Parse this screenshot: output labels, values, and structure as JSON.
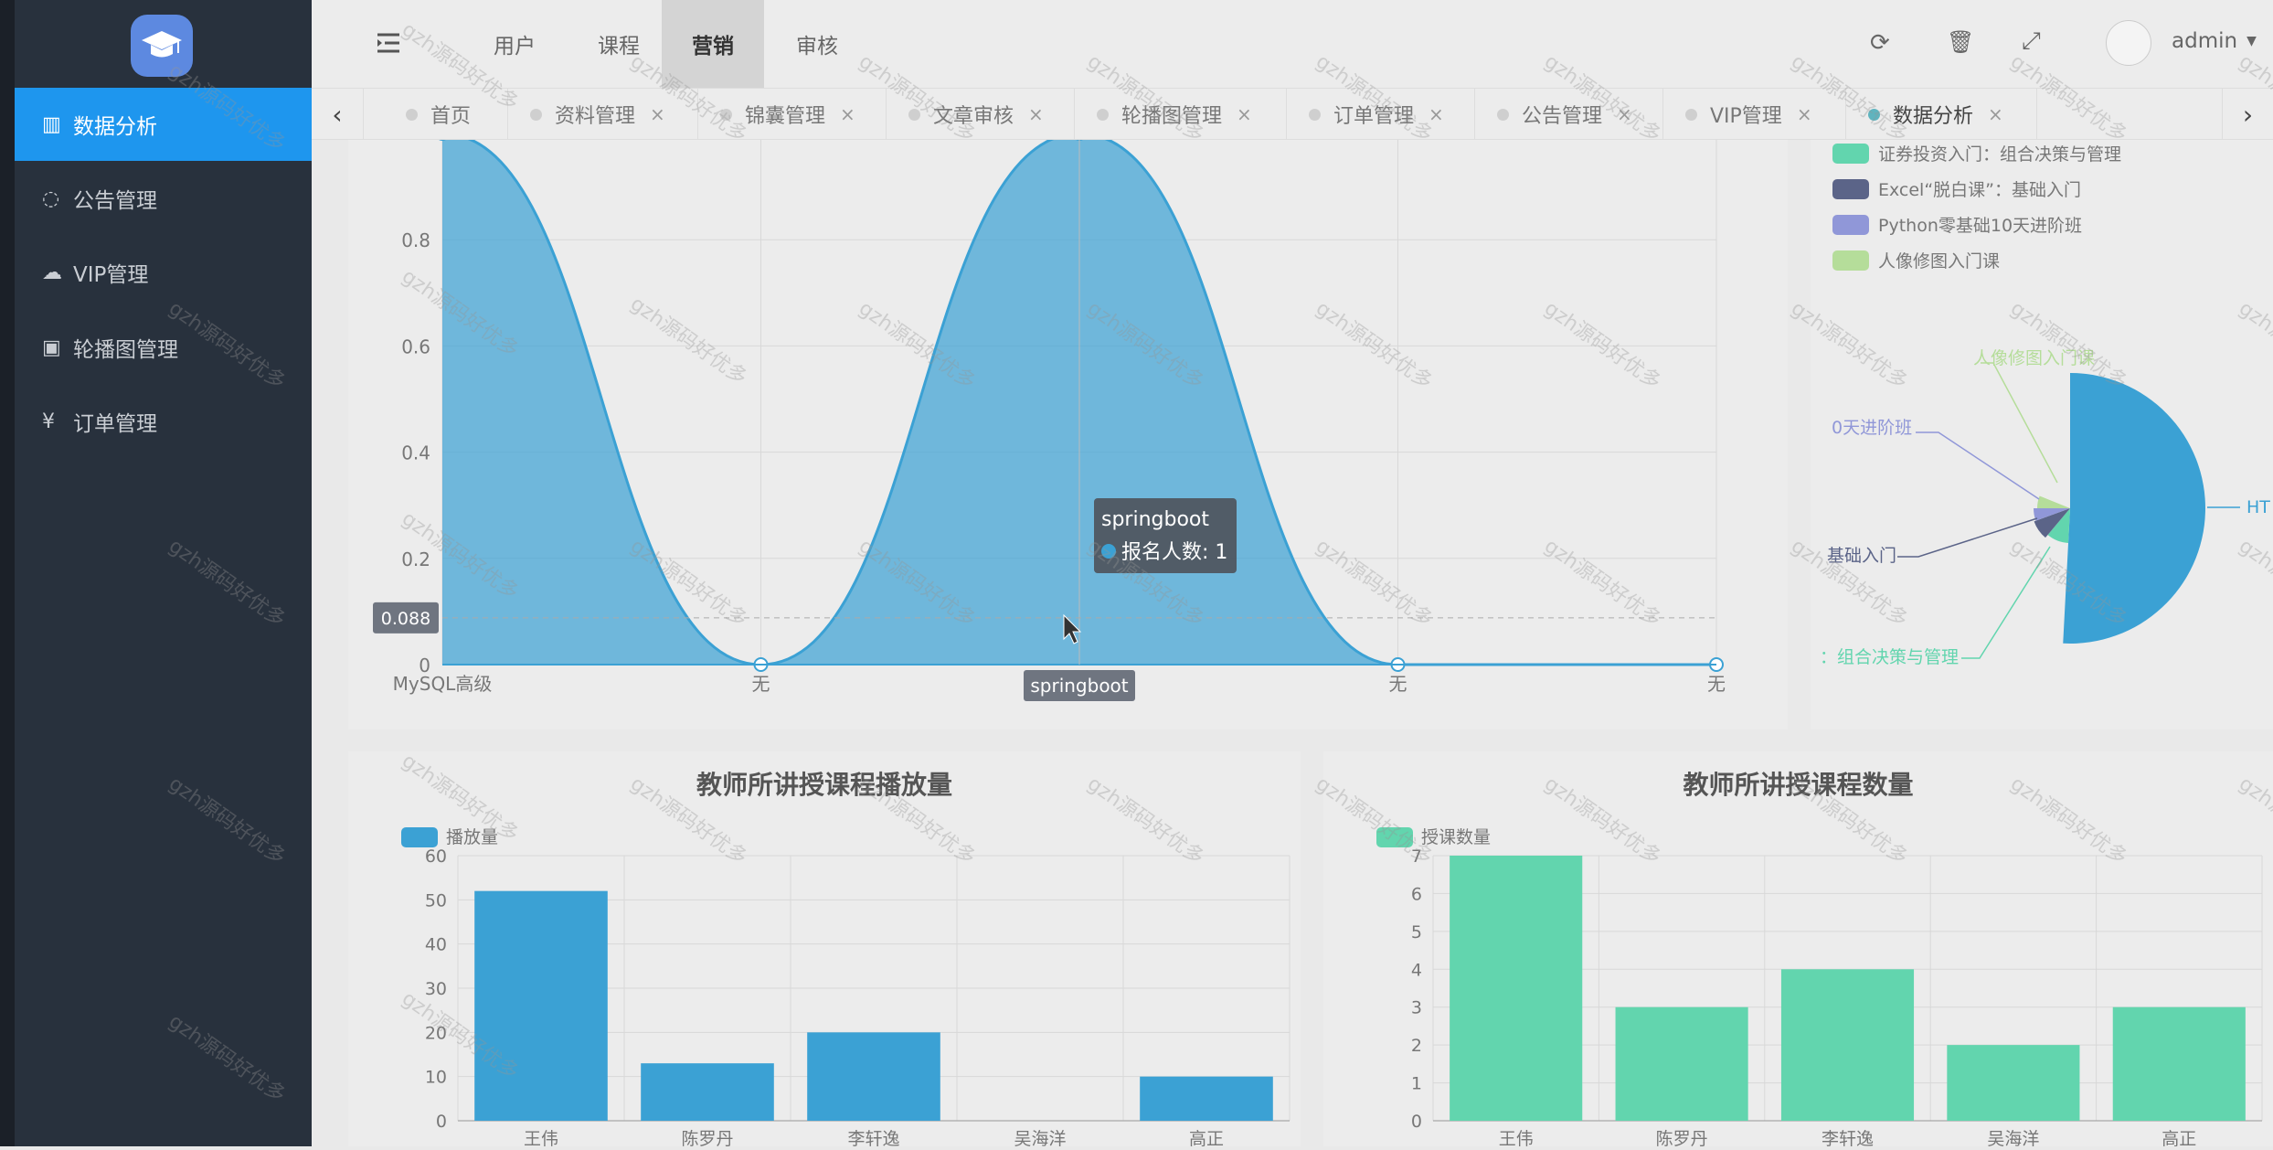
{
  "sidebar": {
    "items": [
      {
        "label": "数据分析",
        "icon": "bar-chart-icon",
        "active": true
      },
      {
        "label": "公告管理",
        "icon": "chat-bubble-icon",
        "active": false
      },
      {
        "label": "VIP管理",
        "icon": "cloud-icon",
        "active": false
      },
      {
        "label": "轮播图管理",
        "icon": "camera-icon",
        "active": false
      },
      {
        "label": "订单管理",
        "icon": "yen-coin-icon",
        "active": false
      }
    ]
  },
  "header": {
    "nav": [
      "用户",
      "课程",
      "营销",
      "审核"
    ],
    "active_nav": "营销",
    "user": "admin"
  },
  "tabs": [
    {
      "label": "首页",
      "closable": false
    },
    {
      "label": "资料管理",
      "closable": true
    },
    {
      "label": "锦囊管理",
      "closable": true
    },
    {
      "label": "文章审核",
      "closable": true
    },
    {
      "label": "轮播图管理",
      "closable": true
    },
    {
      "label": "订单管理",
      "closable": true
    },
    {
      "label": "公告管理",
      "closable": true
    },
    {
      "label": "VIP管理",
      "closable": true
    },
    {
      "label": "数据分析",
      "closable": true,
      "active": true
    }
  ],
  "tab_close_glyph": "×",
  "watermark": "gzh源码好优多",
  "colors": {
    "accent": "#1e96ee",
    "area": "#3ba1d4",
    "bar_blue": "#3ba1d4",
    "bar_green": "#62d5ae"
  },
  "area_tooltip": {
    "title": "springboot",
    "series": "报名人数",
    "value": "1",
    "label": "报名人数: 1"
  },
  "area_pointer": {
    "y_label": "0.088",
    "x_label": "springboot"
  },
  "pie_legend": [
    "证券投资入门：组合决策与管理",
    "Excel“脱白课”：基础入门",
    "Python零基础10天进阶班",
    "人像修图入门课"
  ],
  "pie_labels": [
    "人像修图入门课",
    "0天进阶班",
    "基础入门",
    "：组合决策与管理",
    "HT"
  ],
  "chart_data": [
    {
      "type": "area",
      "categories": [
        "MySQL高级",
        "无",
        "springboot",
        "无",
        "无"
      ],
      "series": [
        {
          "name": "报名人数",
          "values": [
            1,
            0,
            1,
            0,
            0
          ]
        }
      ],
      "yticks": [
        "0",
        "0.2",
        "0.4",
        "0.6",
        "0.8"
      ],
      "ylim": [
        0,
        1
      ],
      "grid": true
    },
    {
      "type": "pie",
      "series": [
        {
          "name": "证券投资入门：组合决策与管理",
          "color": "#62d5ae"
        },
        {
          "name": "Excel“脱白课”：基础入门",
          "color": "#5b6488"
        },
        {
          "name": "Python零基础10天进阶班",
          "color": "#9097d8"
        },
        {
          "name": "人像修图入门课",
          "color": "#b5dd9a"
        },
        {
          "name": "HT",
          "color": "#3ba1d4"
        }
      ]
    },
    {
      "type": "bar",
      "title": "教师所讲授课程播放量",
      "legend": "播放量",
      "categories": [
        "王伟",
        "陈罗丹",
        "李轩逸",
        "吴海洋",
        "高正"
      ],
      "values": [
        52,
        13,
        20,
        0,
        10
      ],
      "ylim": [
        0,
        60
      ],
      "yticks": [
        "0",
        "10",
        "20",
        "30",
        "40",
        "50",
        "60"
      ],
      "color": "#3ba1d4"
    },
    {
      "type": "bar",
      "title": "教师所讲授课程数量",
      "legend": "授课数量",
      "categories": [
        "王伟",
        "陈罗丹",
        "李轩逸",
        "吴海洋",
        "高正"
      ],
      "values": [
        7,
        3,
        4,
        2,
        3
      ],
      "ylim": [
        0,
        7
      ],
      "yticks": [
        "0",
        "1",
        "2",
        "3",
        "4",
        "5",
        "6",
        "7"
      ],
      "color": "#62d5ae"
    }
  ]
}
